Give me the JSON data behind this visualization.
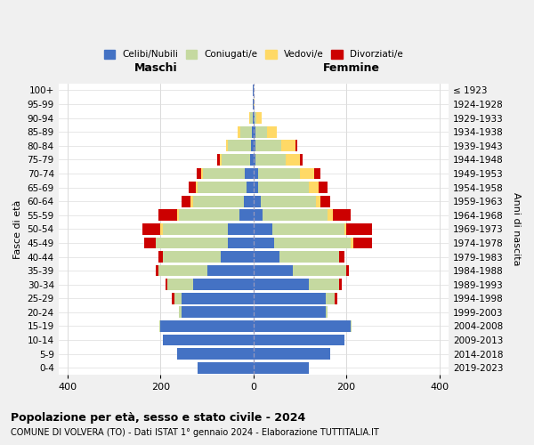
{
  "age_groups": [
    "0-4",
    "5-9",
    "10-14",
    "15-19",
    "20-24",
    "25-29",
    "30-34",
    "35-39",
    "40-44",
    "45-49",
    "50-54",
    "55-59",
    "60-64",
    "65-69",
    "70-74",
    "75-79",
    "80-84",
    "85-89",
    "90-94",
    "95-99",
    "100+"
  ],
  "birth_years": [
    "2019-2023",
    "2014-2018",
    "2009-2013",
    "2004-2008",
    "1999-2003",
    "1994-1998",
    "1989-1993",
    "1984-1988",
    "1979-1983",
    "1974-1978",
    "1969-1973",
    "1964-1968",
    "1959-1963",
    "1954-1958",
    "1949-1953",
    "1944-1948",
    "1939-1943",
    "1934-1938",
    "1929-1933",
    "1924-1928",
    "≤ 1923"
  ],
  "maschi": {
    "celibi": [
      120,
      165,
      195,
      200,
      155,
      155,
      130,
      100,
      70,
      55,
      55,
      30,
      20,
      15,
      18,
      8,
      5,
      4,
      2,
      1,
      1
    ],
    "coniugati": [
      0,
      0,
      0,
      2,
      5,
      15,
      55,
      105,
      125,
      155,
      140,
      130,
      110,
      105,
      90,
      60,
      50,
      25,
      5,
      0,
      0
    ],
    "vedovi": [
      0,
      0,
      0,
      0,
      0,
      0,
      0,
      0,
      0,
      0,
      5,
      5,
      5,
      5,
      5,
      5,
      5,
      5,
      2,
      0,
      0
    ],
    "divorziati": [
      0,
      0,
      0,
      0,
      0,
      5,
      5,
      5,
      10,
      25,
      40,
      40,
      20,
      15,
      10,
      5,
      0,
      0,
      0,
      0,
      0
    ]
  },
  "femmine": {
    "nubili": [
      120,
      165,
      195,
      210,
      155,
      155,
      120,
      85,
      55,
      45,
      40,
      20,
      15,
      10,
      10,
      5,
      5,
      5,
      2,
      1,
      1
    ],
    "coniugate": [
      0,
      0,
      0,
      2,
      5,
      20,
      65,
      115,
      130,
      165,
      155,
      140,
      120,
      110,
      90,
      65,
      55,
      25,
      5,
      0,
      0
    ],
    "vedove": [
      0,
      0,
      0,
      0,
      0,
      0,
      0,
      0,
      0,
      5,
      5,
      10,
      10,
      20,
      30,
      30,
      30,
      20,
      10,
      2,
      0
    ],
    "divorziate": [
      0,
      0,
      0,
      0,
      0,
      5,
      5,
      5,
      10,
      40,
      55,
      40,
      20,
      20,
      15,
      5,
      5,
      0,
      0,
      0,
      0
    ]
  },
  "colors": {
    "celibi": "#4472C4",
    "coniugati": "#C5D9A0",
    "vedovi": "#FFD966",
    "divorziati": "#CC0000"
  },
  "xlim": 420,
  "title": "Popolazione per età, sesso e stato civile - 2024",
  "subtitle": "COMUNE DI VOLVERA (TO) - Dati ISTAT 1° gennaio 2024 - Elaborazione TUTTITALIA.IT",
  "xlabel_left": "Maschi",
  "xlabel_right": "Femmine",
  "ylabel_left": "Fasce di età",
  "ylabel_right": "Anni di nascita",
  "bg_color": "#f0f0f0",
  "plot_bg": "#ffffff"
}
